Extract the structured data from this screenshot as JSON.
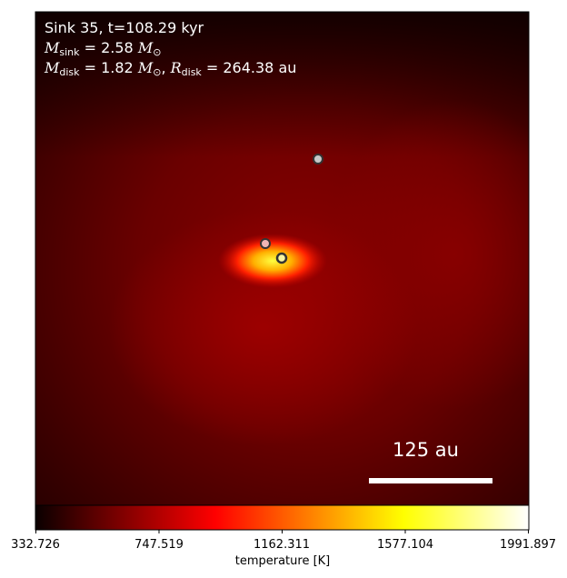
{
  "plot": {
    "line1": "Sink 35, t=108.29 kyr",
    "msink_value": "2.58",
    "mdisk_value": "1.82",
    "rdisk_value": "264.38",
    "sub_sink": "sink",
    "sub_disk": "disk",
    "unit_au": "au",
    "scalebar_label": "125 au"
  },
  "colorbar": {
    "label": "temperature [K]",
    "ticks": [
      "332.726",
      "747.519",
      "1162.311",
      "1577.104",
      "1991.897"
    ],
    "min": 332.726,
    "max": 1991.897,
    "colormap": "hot"
  },
  "markers": [
    {
      "name": "upper-sink-marker",
      "fill": "#c8c8c8"
    },
    {
      "name": "left-sink-marker",
      "fill": "#f0b4b4"
    },
    {
      "name": "central-sink-marker",
      "fill": "#f5f5a0"
    }
  ],
  "colors": {
    "text": "#ffffff",
    "scalebar": "#ffffff",
    "marker_edge": "#333333"
  }
}
